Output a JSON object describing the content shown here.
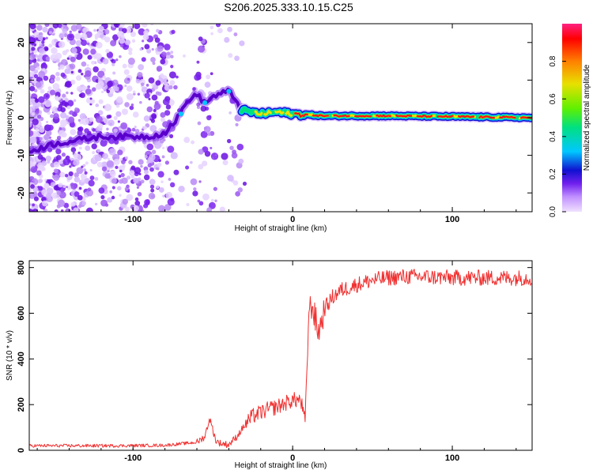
{
  "title": "S206.2025.333.10.15.C25",
  "colors": {
    "series": "#f03030",
    "axis": "#000000",
    "noise": "#7a22ee",
    "track": "#ff2a2a"
  },
  "chart_data": [
    {
      "type": "heatmap",
      "name": "spectrogram",
      "xlabel": "Height of straight line (km)",
      "ylabel": "Frequency (Hz)",
      "xlim": [
        -165,
        150
      ],
      "ylim": [
        -25,
        25
      ],
      "xticks": [
        -100,
        0,
        100
      ],
      "yticks": [
        -20,
        -10,
        0,
        10,
        20
      ],
      "colorbar": {
        "label": "Normalized spectral amplitude",
        "range": [
          0,
          1
        ],
        "ticks": [
          "0.0",
          "0.2",
          "0.4",
          "0.6",
          "0.8"
        ],
        "tick_values": [
          0.0,
          0.2,
          0.4,
          0.6,
          0.8
        ],
        "colormap": [
          "#f0e0ff",
          "#c090ff",
          "#7020ee",
          "#1010d0",
          "#00c8ff",
          "#00e080",
          "#60f000",
          "#e8e000",
          "#ff8000",
          "#ff0000",
          "#ff2080"
        ]
      },
      "track_points": [
        {
          "x": -165,
          "y": -9
        },
        {
          "x": -150,
          "y": -7
        },
        {
          "x": -120,
          "y": -5
        },
        {
          "x": -90,
          "y": -5
        },
        {
          "x": -80,
          "y": -4
        },
        {
          "x": -72,
          "y": 0
        },
        {
          "x": -65,
          "y": 5
        },
        {
          "x": -60,
          "y": 6
        },
        {
          "x": -55,
          "y": 4
        },
        {
          "x": -48,
          "y": 6
        },
        {
          "x": -40,
          "y": 7
        },
        {
          "x": -36,
          "y": 5
        },
        {
          "x": -32,
          "y": 2
        },
        {
          "x": -20,
          "y": 1
        },
        {
          "x": -10,
          "y": 1.5
        },
        {
          "x": 0,
          "y": 1
        },
        {
          "x": 20,
          "y": 0.5
        },
        {
          "x": 60,
          "y": 0.5
        },
        {
          "x": 100,
          "y": 0.3
        },
        {
          "x": 150,
          "y": 0
        }
      ],
      "track_peak_amplitude": 0.9
    },
    {
      "type": "line",
      "name": "snr",
      "xlabel": "Height of straight line (km)",
      "ylabel": "SNR (10 * v/v)",
      "xlim": [
        -165,
        150
      ],
      "ylim": [
        0,
        830
      ],
      "xticks": [
        -100,
        0,
        100
      ],
      "yticks": [
        0,
        200,
        400,
        600,
        800
      ],
      "series": [
        {
          "name": "SNR",
          "x": [
            -165,
            -140,
            -110,
            -80,
            -60,
            -55,
            -52,
            -48,
            -45,
            -40,
            -35,
            -30,
            -25,
            -20,
            -15,
            -10,
            -5,
            0,
            5,
            8,
            10,
            12,
            14,
            16,
            18,
            20,
            25,
            30,
            40,
            50,
            60,
            70,
            80,
            100,
            120,
            150
          ],
          "y": [
            20,
            20,
            20,
            22,
            35,
            60,
            140,
            40,
            30,
            25,
            60,
            110,
            150,
            165,
            180,
            190,
            205,
            220,
            220,
            120,
            600,
            640,
            580,
            520,
            560,
            620,
            670,
            700,
            725,
            745,
            755,
            760,
            760,
            755,
            755,
            755
          ]
        }
      ]
    }
  ]
}
